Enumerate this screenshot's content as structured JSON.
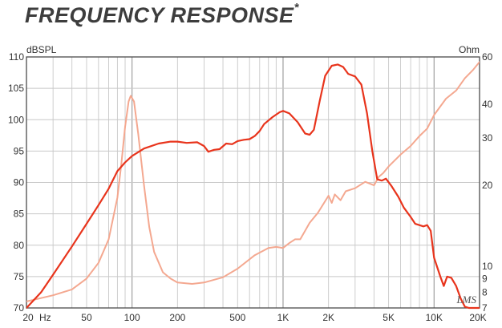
{
  "page": {
    "title": "FREQUENCY RESPONSE",
    "title_mark": "*"
  },
  "chart_data": {
    "type": "line",
    "title": "FREQUENCY RESPONSE*",
    "x_scale": "log",
    "xlim": [
      20,
      20000
    ],
    "x_tick_labels": [
      {
        "value": 20,
        "label": "20"
      },
      {
        "value": 50,
        "label": "50"
      },
      {
        "value": 100,
        "label": "100"
      },
      {
        "value": 200,
        "label": "200"
      },
      {
        "value": 500,
        "label": "500"
      },
      {
        "value": 1000,
        "label": "1K"
      },
      {
        "value": 2000,
        "label": "2K"
      },
      {
        "value": 5000,
        "label": "5K"
      },
      {
        "value": 10000,
        "label": "10K"
      },
      {
        "value": 20000,
        "label": "20K"
      }
    ],
    "x_unit_label": "Hz",
    "ylabel": "dBSPL",
    "ylim": [
      70,
      110
    ],
    "y_ticks": [
      70,
      75,
      80,
      85,
      90,
      95,
      100,
      105,
      110
    ],
    "y2label": "Ohm",
    "y2_scale": "log",
    "y2lim": [
      7,
      60
    ],
    "y2_ticks": [
      7,
      8,
      9,
      10,
      20,
      30,
      40,
      60
    ],
    "grid": true,
    "watermark": "LMS",
    "colors": {
      "spl": "#e8341c",
      "impedance": "#f4a890",
      "grid": "#c8c8c8",
      "frame": "#4a4a4a",
      "text": "#333333"
    },
    "series": [
      {
        "key": "spl",
        "axis": "left",
        "points": [
          [
            20,
            70
          ],
          [
            25,
            72.5
          ],
          [
            30,
            75.3
          ],
          [
            40,
            79.8
          ],
          [
            50,
            83.4
          ],
          [
            60,
            86.4
          ],
          [
            70,
            89
          ],
          [
            80,
            91.8
          ],
          [
            90,
            93.2
          ],
          [
            100,
            94.2
          ],
          [
            120,
            95.4
          ],
          [
            150,
            96.2
          ],
          [
            180,
            96.5
          ],
          [
            200,
            96.5
          ],
          [
            230,
            96.3
          ],
          [
            270,
            96.4
          ],
          [
            300,
            95.8
          ],
          [
            320,
            94.9
          ],
          [
            350,
            95.2
          ],
          [
            380,
            95.3
          ],
          [
            420,
            96.2
          ],
          [
            460,
            96.1
          ],
          [
            500,
            96.6
          ],
          [
            550,
            96.8
          ],
          [
            600,
            96.9
          ],
          [
            650,
            97.4
          ],
          [
            700,
            98.2
          ],
          [
            750,
            99.3
          ],
          [
            850,
            100.4
          ],
          [
            950,
            101.2
          ],
          [
            1000,
            101.4
          ],
          [
            1100,
            101
          ],
          [
            1250,
            99.6
          ],
          [
            1400,
            97.8
          ],
          [
            1500,
            97.6
          ],
          [
            1600,
            98.4
          ],
          [
            1750,
            103
          ],
          [
            1900,
            107
          ],
          [
            2100,
            108.6
          ],
          [
            2300,
            108.8
          ],
          [
            2500,
            108.4
          ],
          [
            2700,
            107.3
          ],
          [
            3000,
            106.9
          ],
          [
            3300,
            105.6
          ],
          [
            3600,
            101
          ],
          [
            3900,
            95
          ],
          [
            4200,
            90.5
          ],
          [
            4500,
            90.3
          ],
          [
            4800,
            90.6
          ],
          [
            5200,
            89.5
          ],
          [
            5800,
            87.7
          ],
          [
            6300,
            86
          ],
          [
            7000,
            84.5
          ],
          [
            7500,
            83.4
          ],
          [
            8500,
            83
          ],
          [
            9000,
            83.2
          ],
          [
            9500,
            82.3
          ],
          [
            10000,
            78
          ],
          [
            11000,
            75
          ],
          [
            11600,
            73.5
          ],
          [
            12200,
            75
          ],
          [
            13000,
            74.8
          ],
          [
            14000,
            73.5
          ],
          [
            15000,
            71.5
          ],
          [
            16000,
            70.2
          ],
          [
            17000,
            70
          ],
          [
            20000,
            70
          ]
        ]
      },
      {
        "key": "impedance",
        "axis": "right",
        "points": [
          [
            20,
            7.4
          ],
          [
            30,
            7.8
          ],
          [
            40,
            8.2
          ],
          [
            50,
            9
          ],
          [
            60,
            10.3
          ],
          [
            70,
            12.6
          ],
          [
            80,
            18
          ],
          [
            85,
            24
          ],
          [
            90,
            33
          ],
          [
            95,
            41
          ],
          [
            98,
            43
          ],
          [
            103,
            41
          ],
          [
            110,
            31
          ],
          [
            120,
            20
          ],
          [
            130,
            14
          ],
          [
            140,
            11.3
          ],
          [
            160,
            9.5
          ],
          [
            180,
            9
          ],
          [
            200,
            8.7
          ],
          [
            250,
            8.6
          ],
          [
            300,
            8.7
          ],
          [
            400,
            9.1
          ],
          [
            500,
            9.8
          ],
          [
            650,
            11
          ],
          [
            800,
            11.7
          ],
          [
            900,
            11.8
          ],
          [
            1000,
            11.7
          ],
          [
            1100,
            12.2
          ],
          [
            1200,
            12.6
          ],
          [
            1300,
            12.6
          ],
          [
            1500,
            14.5
          ],
          [
            1700,
            15.8
          ],
          [
            2000,
            18.3
          ],
          [
            2100,
            17.2
          ],
          [
            2200,
            18.5
          ],
          [
            2400,
            17.6
          ],
          [
            2600,
            19
          ],
          [
            3000,
            19.5
          ],
          [
            3500,
            20.6
          ],
          [
            4000,
            20
          ],
          [
            4300,
            21.5
          ],
          [
            4600,
            22.2
          ],
          [
            5000,
            23.5
          ],
          [
            6000,
            26
          ],
          [
            7000,
            28
          ],
          [
            8000,
            30.5
          ],
          [
            9000,
            32.5
          ],
          [
            10000,
            36.5
          ],
          [
            12000,
            42
          ],
          [
            14000,
            45
          ],
          [
            16000,
            50
          ],
          [
            18000,
            53.5
          ],
          [
            20000,
            57.5
          ]
        ]
      }
    ]
  }
}
